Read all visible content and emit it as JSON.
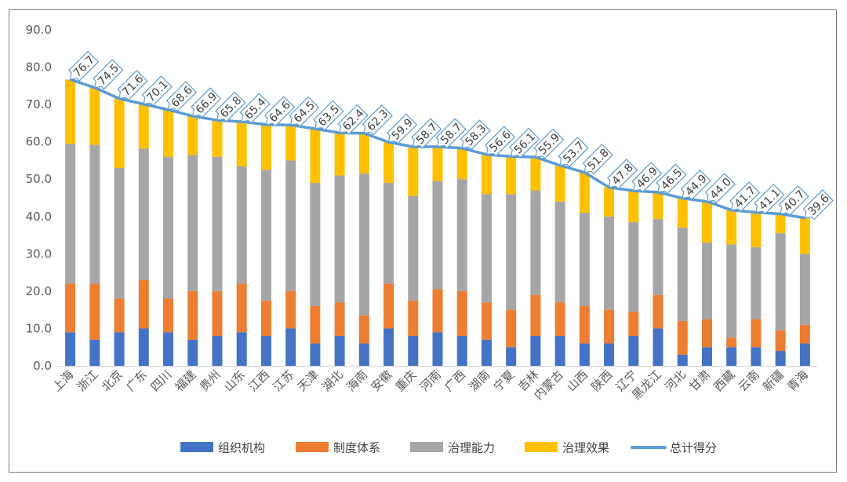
{
  "chart_data": {
    "type": "bar",
    "stacked": true,
    "ylim": [
      0,
      90
    ],
    "yticks": [
      "0.0",
      "10.0",
      "20.0",
      "30.0",
      "40.0",
      "50.0",
      "60.0",
      "70.0",
      "80.0",
      "90.0"
    ],
    "categories": [
      "上海",
      "浙江",
      "北京",
      "广东",
      "四川",
      "福建",
      "贵州",
      "山东",
      "江西",
      "江苏",
      "天津",
      "湖北",
      "海南",
      "安徽",
      "重庆",
      "河南",
      "广西",
      "湖南",
      "宁夏",
      "吉林",
      "内蒙古",
      "山西",
      "陕西",
      "辽宁",
      "黑龙江",
      "河北",
      "甘肃",
      "西藏",
      "云南",
      "新疆",
      "青海"
    ],
    "series": [
      {
        "name": "组织机构",
        "color": "#4472C4",
        "values": [
          9,
          7,
          9,
          10,
          9,
          7,
          8,
          9,
          8,
          10,
          6,
          8,
          6,
          10,
          8,
          9,
          8,
          7,
          5,
          8,
          8,
          6,
          6,
          8,
          10,
          3,
          5,
          5,
          5,
          4,
          6
        ]
      },
      {
        "name": "制度体系",
        "color": "#ED7D31",
        "values": [
          13,
          15,
          9,
          13,
          9,
          13,
          12,
          13,
          9.5,
          10,
          10,
          9,
          7.5,
          12,
          9.5,
          11.5,
          12,
          10,
          10,
          11,
          9,
          10,
          9,
          6.5,
          9,
          9,
          7.5,
          2.5,
          7.5,
          5.5,
          5
        ]
      },
      {
        "name": "治理能力",
        "color": "#A5A5A5",
        "values": [
          37.5,
          37.2,
          35,
          35.2,
          38,
          36.5,
          36,
          31.5,
          35,
          35,
          33,
          34,
          38,
          27,
          28,
          29,
          30,
          29,
          31,
          28,
          27,
          25,
          25,
          24,
          20.3,
          25,
          20.5,
          25,
          19.3,
          26,
          19
        ]
      },
      {
        "name": "治理效果",
        "color": "#FFC000",
        "values": [
          17.2,
          15.3,
          18.6,
          11.9,
          12.6,
          10.4,
          9.8,
          11.9,
          12.1,
          9.5,
          14.5,
          11.4,
          10.8,
          10.9,
          13.2,
          9.2,
          8.3,
          10.6,
          10.1,
          8.9,
          9.7,
          10.8,
          7.8,
          8.4,
          7.2,
          7.9,
          11,
          9.2,
          9.3,
          5.2,
          9.6
        ]
      }
    ],
    "line": {
      "name": "总计得分",
      "color": "#5B9BD5",
      "values": [
        76.7,
        74.5,
        71.6,
        70.1,
        68.6,
        66.9,
        65.8,
        65.4,
        64.6,
        64.5,
        63.5,
        62.4,
        62.3,
        59.9,
        58.7,
        58.7,
        58.3,
        56.6,
        56.1,
        55.9,
        53.7,
        51.8,
        47.8,
        46.9,
        46.5,
        44.9,
        44.0,
        41.7,
        41.1,
        40.7,
        39.6
      ]
    },
    "data_labels": [
      "76.7",
      "74.5",
      "71.6",
      "70.1",
      "68.6",
      "66.9",
      "65.8",
      "65.4",
      "64.6",
      "64.5",
      "63.5",
      "62.4",
      "62.3",
      "59.9",
      "58.7",
      "58.7",
      "58.3",
      "56.6",
      "56.1",
      "55.9",
      "53.7",
      "51.8",
      "47.8",
      "46.9",
      "46.5",
      "44.9",
      "44.0",
      "41.7",
      "41.1",
      "40.7",
      "39.6"
    ],
    "legend": [
      "组织机构",
      "制度体系",
      "治理能力",
      "治理效果",
      "总计得分"
    ],
    "legend_position": "bottom"
  }
}
